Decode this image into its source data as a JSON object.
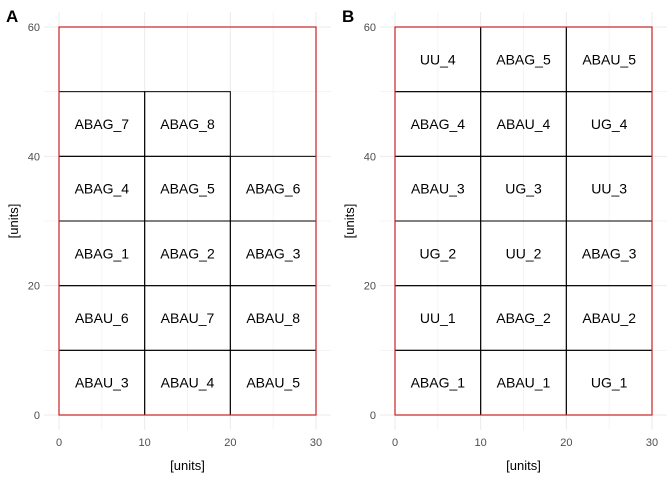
{
  "panels": [
    {
      "tag": "A",
      "xlabel": "[units]",
      "ylabel": "[units]",
      "xlim": [
        0,
        30
      ],
      "ylim": [
        0,
        60
      ],
      "x_ticks": [
        0,
        10,
        20,
        30
      ],
      "y_ticks": [
        0,
        20,
        40,
        60
      ],
      "cells": [
        {
          "label": "ABAU_3",
          "x": [
            0,
            10
          ],
          "y": [
            0,
            10
          ]
        },
        {
          "label": "ABAU_4",
          "x": [
            10,
            20
          ],
          "y": [
            0,
            10
          ]
        },
        {
          "label": "ABAU_5",
          "x": [
            20,
            30
          ],
          "y": [
            0,
            10
          ]
        },
        {
          "label": "ABAU_6",
          "x": [
            0,
            10
          ],
          "y": [
            10,
            20
          ]
        },
        {
          "label": "ABAU_7",
          "x": [
            10,
            20
          ],
          "y": [
            10,
            20
          ]
        },
        {
          "label": "ABAU_8",
          "x": [
            20,
            30
          ],
          "y": [
            10,
            20
          ]
        },
        {
          "label": "ABAG_1",
          "x": [
            0,
            10
          ],
          "y": [
            20,
            30
          ]
        },
        {
          "label": "ABAG_2",
          "x": [
            10,
            20
          ],
          "y": [
            20,
            30
          ]
        },
        {
          "label": "ABAG_3",
          "x": [
            20,
            30
          ],
          "y": [
            20,
            30
          ]
        },
        {
          "label": "ABAG_4",
          "x": [
            0,
            10
          ],
          "y": [
            30,
            40
          ]
        },
        {
          "label": "ABAG_5",
          "x": [
            10,
            20
          ],
          "y": [
            30,
            40
          ]
        },
        {
          "label": "ABAG_6",
          "x": [
            20,
            30
          ],
          "y": [
            30,
            40
          ]
        },
        {
          "label": "ABAG_7",
          "x": [
            0,
            10
          ],
          "y": [
            40,
            50
          ]
        },
        {
          "label": "ABAG_8",
          "x": [
            10,
            20
          ],
          "y": [
            40,
            50
          ]
        }
      ]
    },
    {
      "tag": "B",
      "xlabel": "[units]",
      "ylabel": "[units]",
      "xlim": [
        0,
        30
      ],
      "ylim": [
        0,
        60
      ],
      "x_ticks": [
        0,
        10,
        20,
        30
      ],
      "y_ticks": [
        0,
        20,
        40,
        60
      ],
      "cells": [
        {
          "label": "ABAG_1",
          "x": [
            0,
            10
          ],
          "y": [
            0,
            10
          ]
        },
        {
          "label": "ABAU_1",
          "x": [
            10,
            20
          ],
          "y": [
            0,
            10
          ]
        },
        {
          "label": "UG_1",
          "x": [
            20,
            30
          ],
          "y": [
            0,
            10
          ]
        },
        {
          "label": "UU_1",
          "x": [
            0,
            10
          ],
          "y": [
            10,
            20
          ]
        },
        {
          "label": "ABAG_2",
          "x": [
            10,
            20
          ],
          "y": [
            10,
            20
          ]
        },
        {
          "label": "ABAU_2",
          "x": [
            20,
            30
          ],
          "y": [
            10,
            20
          ]
        },
        {
          "label": "UG_2",
          "x": [
            0,
            10
          ],
          "y": [
            20,
            30
          ]
        },
        {
          "label": "UU_2",
          "x": [
            10,
            20
          ],
          "y": [
            20,
            30
          ]
        },
        {
          "label": "ABAG_3",
          "x": [
            20,
            30
          ],
          "y": [
            20,
            30
          ]
        },
        {
          "label": "ABAU_3",
          "x": [
            0,
            10
          ],
          "y": [
            30,
            40
          ]
        },
        {
          "label": "UG_3",
          "x": [
            10,
            20
          ],
          "y": [
            30,
            40
          ]
        },
        {
          "label": "UU_3",
          "x": [
            20,
            30
          ],
          "y": [
            30,
            40
          ]
        },
        {
          "label": "ABAG_4",
          "x": [
            0,
            10
          ],
          "y": [
            40,
            50
          ]
        },
        {
          "label": "ABAU_4",
          "x": [
            10,
            20
          ],
          "y": [
            40,
            50
          ]
        },
        {
          "label": "UG_4",
          "x": [
            20,
            30
          ],
          "y": [
            40,
            50
          ]
        },
        {
          "label": "UU_4",
          "x": [
            0,
            10
          ],
          "y": [
            50,
            60
          ]
        },
        {
          "label": "ABAG_5",
          "x": [
            10,
            20
          ],
          "y": [
            50,
            60
          ]
        },
        {
          "label": "ABAU_5",
          "x": [
            20,
            30
          ],
          "y": [
            50,
            60
          ]
        }
      ]
    }
  ]
}
